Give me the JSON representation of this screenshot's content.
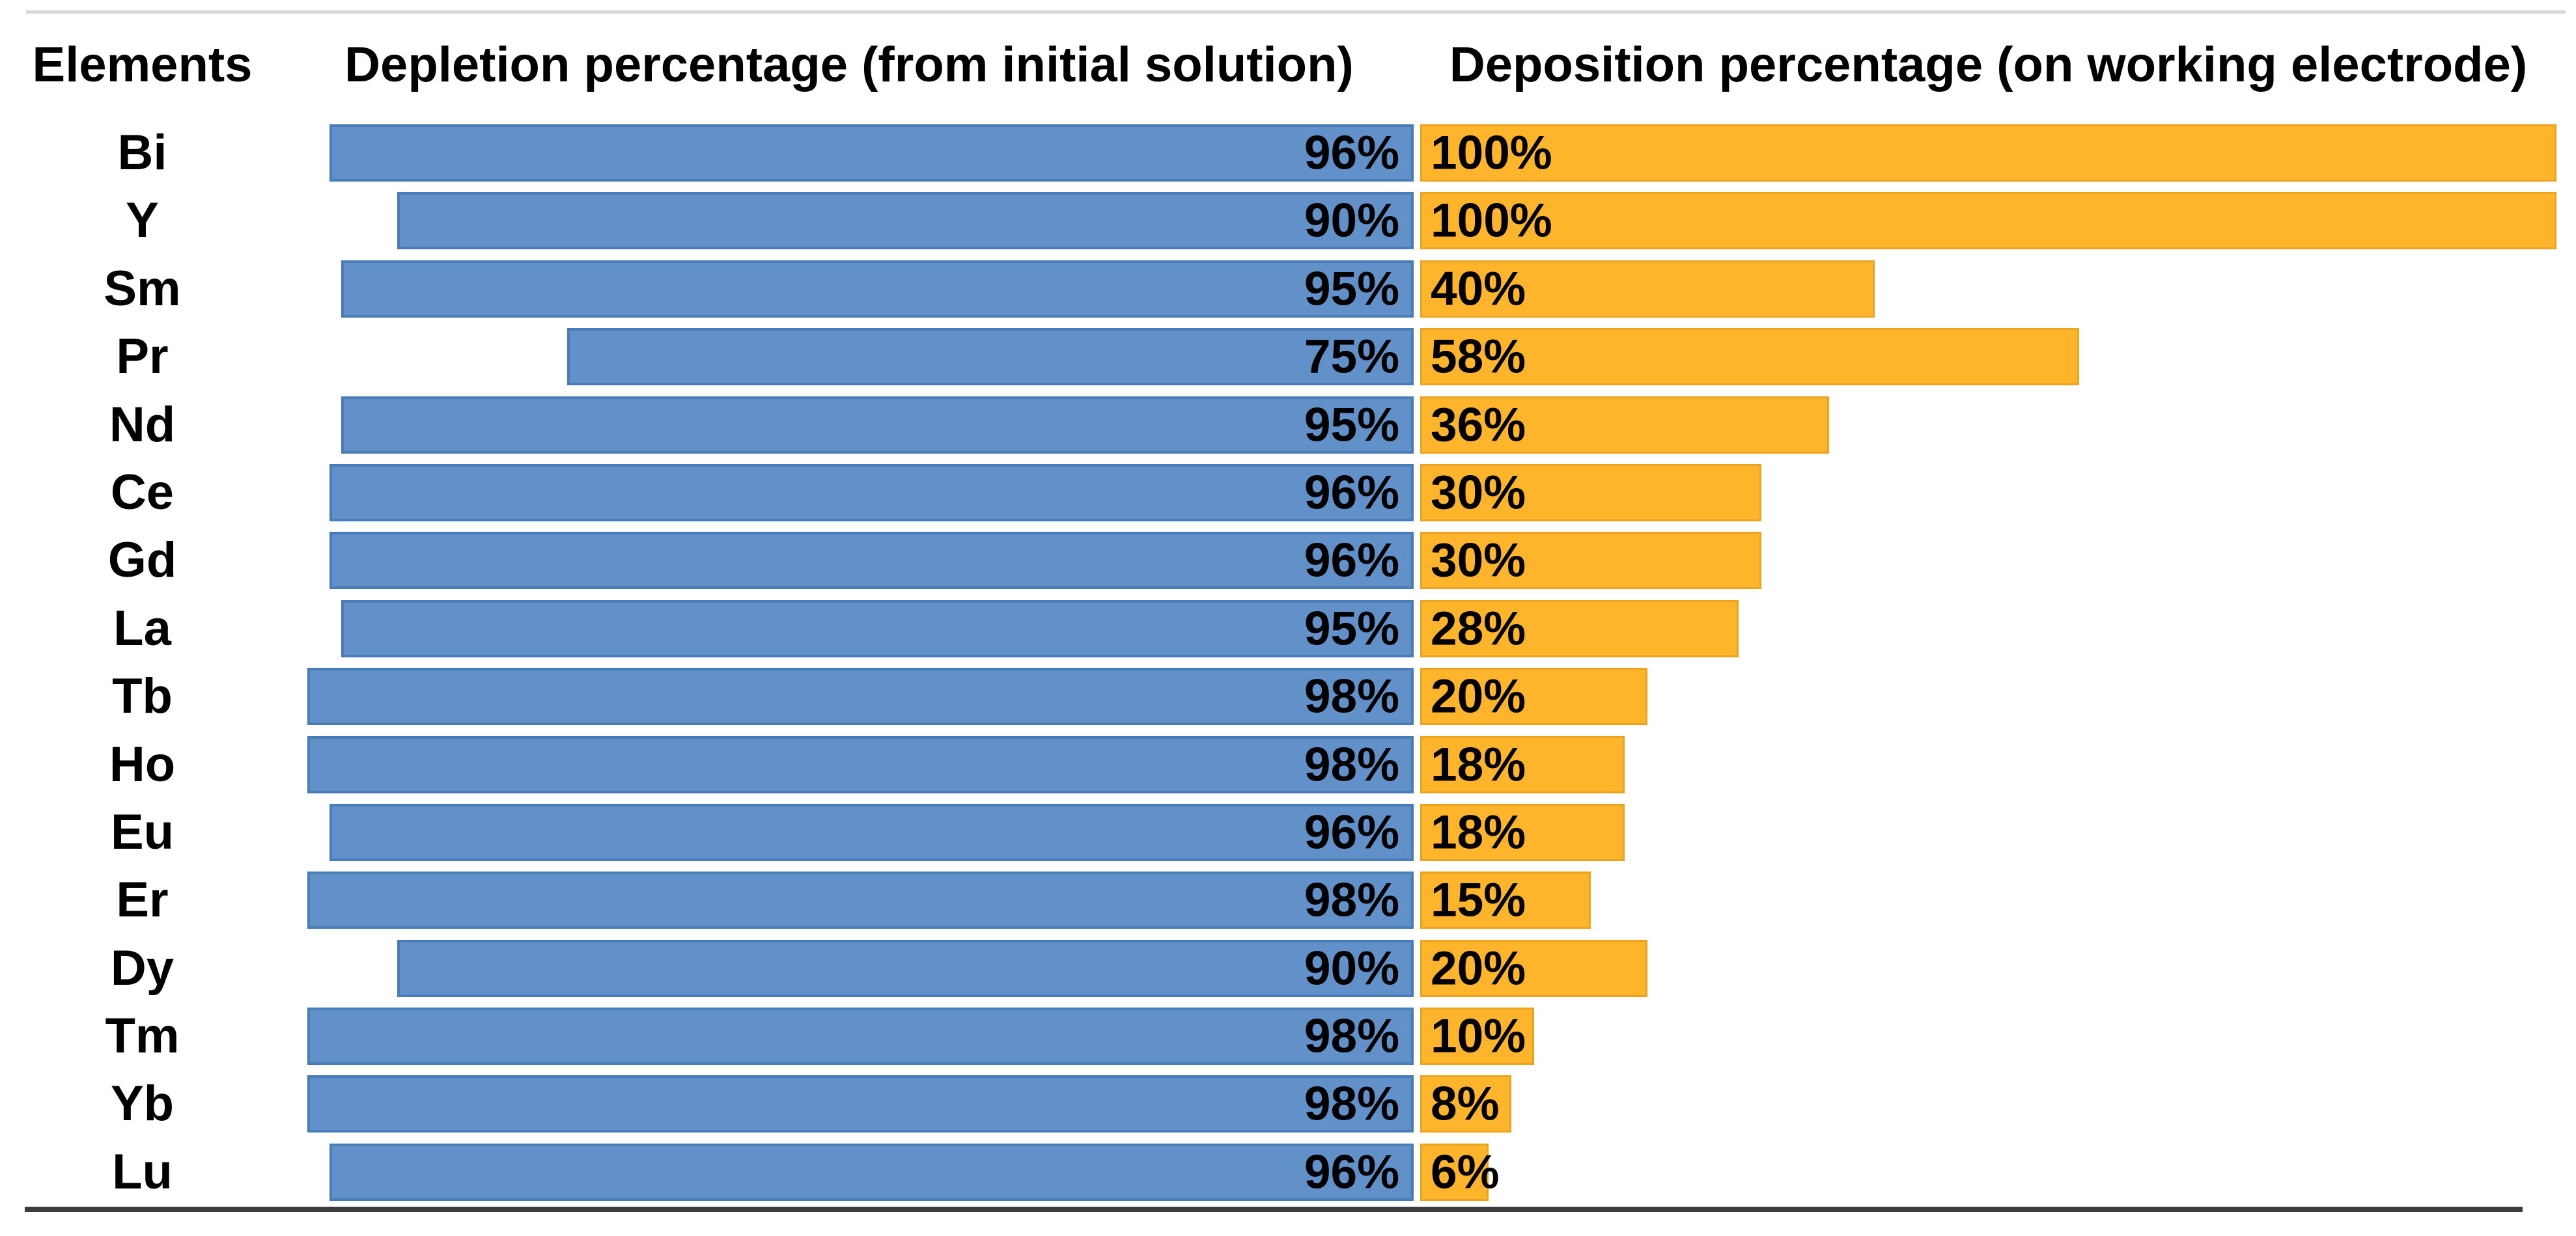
{
  "chart_data": {
    "type": "bar",
    "orientation": "horizontal",
    "title": "",
    "columns": {
      "elements": "Elements",
      "depletion": "Depletion percentage (from initial solution)",
      "deposition": "Deposition percentage (on working electrode)"
    },
    "categories": [
      "Bi",
      "Y",
      "Sm",
      "Pr",
      "Nd",
      "Ce",
      "Gd",
      "La",
      "Tb",
      "Ho",
      "Eu",
      "Er",
      "Dy",
      "Tm",
      "Yb",
      "Lu"
    ],
    "series": [
      {
        "name": "Depletion percentage (from initial solution)",
        "color": "#6290c8",
        "border_color": "#4a7cba",
        "alignment": "right",
        "values": [
          96,
          90,
          95,
          75,
          95,
          96,
          96,
          95,
          98,
          98,
          96,
          98,
          90,
          98,
          98,
          96
        ],
        "labels": [
          "96%",
          "90%",
          "95%",
          "75%",
          "95%",
          "96%",
          "96%",
          "95%",
          "98%",
          "98%",
          "96%",
          "98%",
          "90%",
          "98%",
          "98%",
          "96%"
        ]
      },
      {
        "name": "Deposition percentage (on working electrode)",
        "color": "#feb52b",
        "border_color": "#eca31d",
        "alignment": "left",
        "values": [
          100,
          100,
          40,
          58,
          36,
          30,
          30,
          28,
          20,
          18,
          18,
          15,
          20,
          10,
          8,
          6
        ],
        "labels": [
          "100%",
          "100%",
          "40%",
          "58%",
          "36%",
          "30%",
          "30%",
          "28%",
          "20%",
          "18%",
          "18%",
          "15%",
          "20%",
          "10%",
          "8%",
          "6%"
        ]
      }
    ],
    "xlim": [
      0,
      100
    ],
    "value_suffix": "%",
    "axes_hidden": true,
    "grid": false,
    "legend": "none",
    "data_labels": "inside-bar"
  },
  "colors": {
    "background": "#ffffff",
    "text": "#000000",
    "top_rule": "#d7d7d7",
    "bottom_rule": "#3d3d3d"
  }
}
